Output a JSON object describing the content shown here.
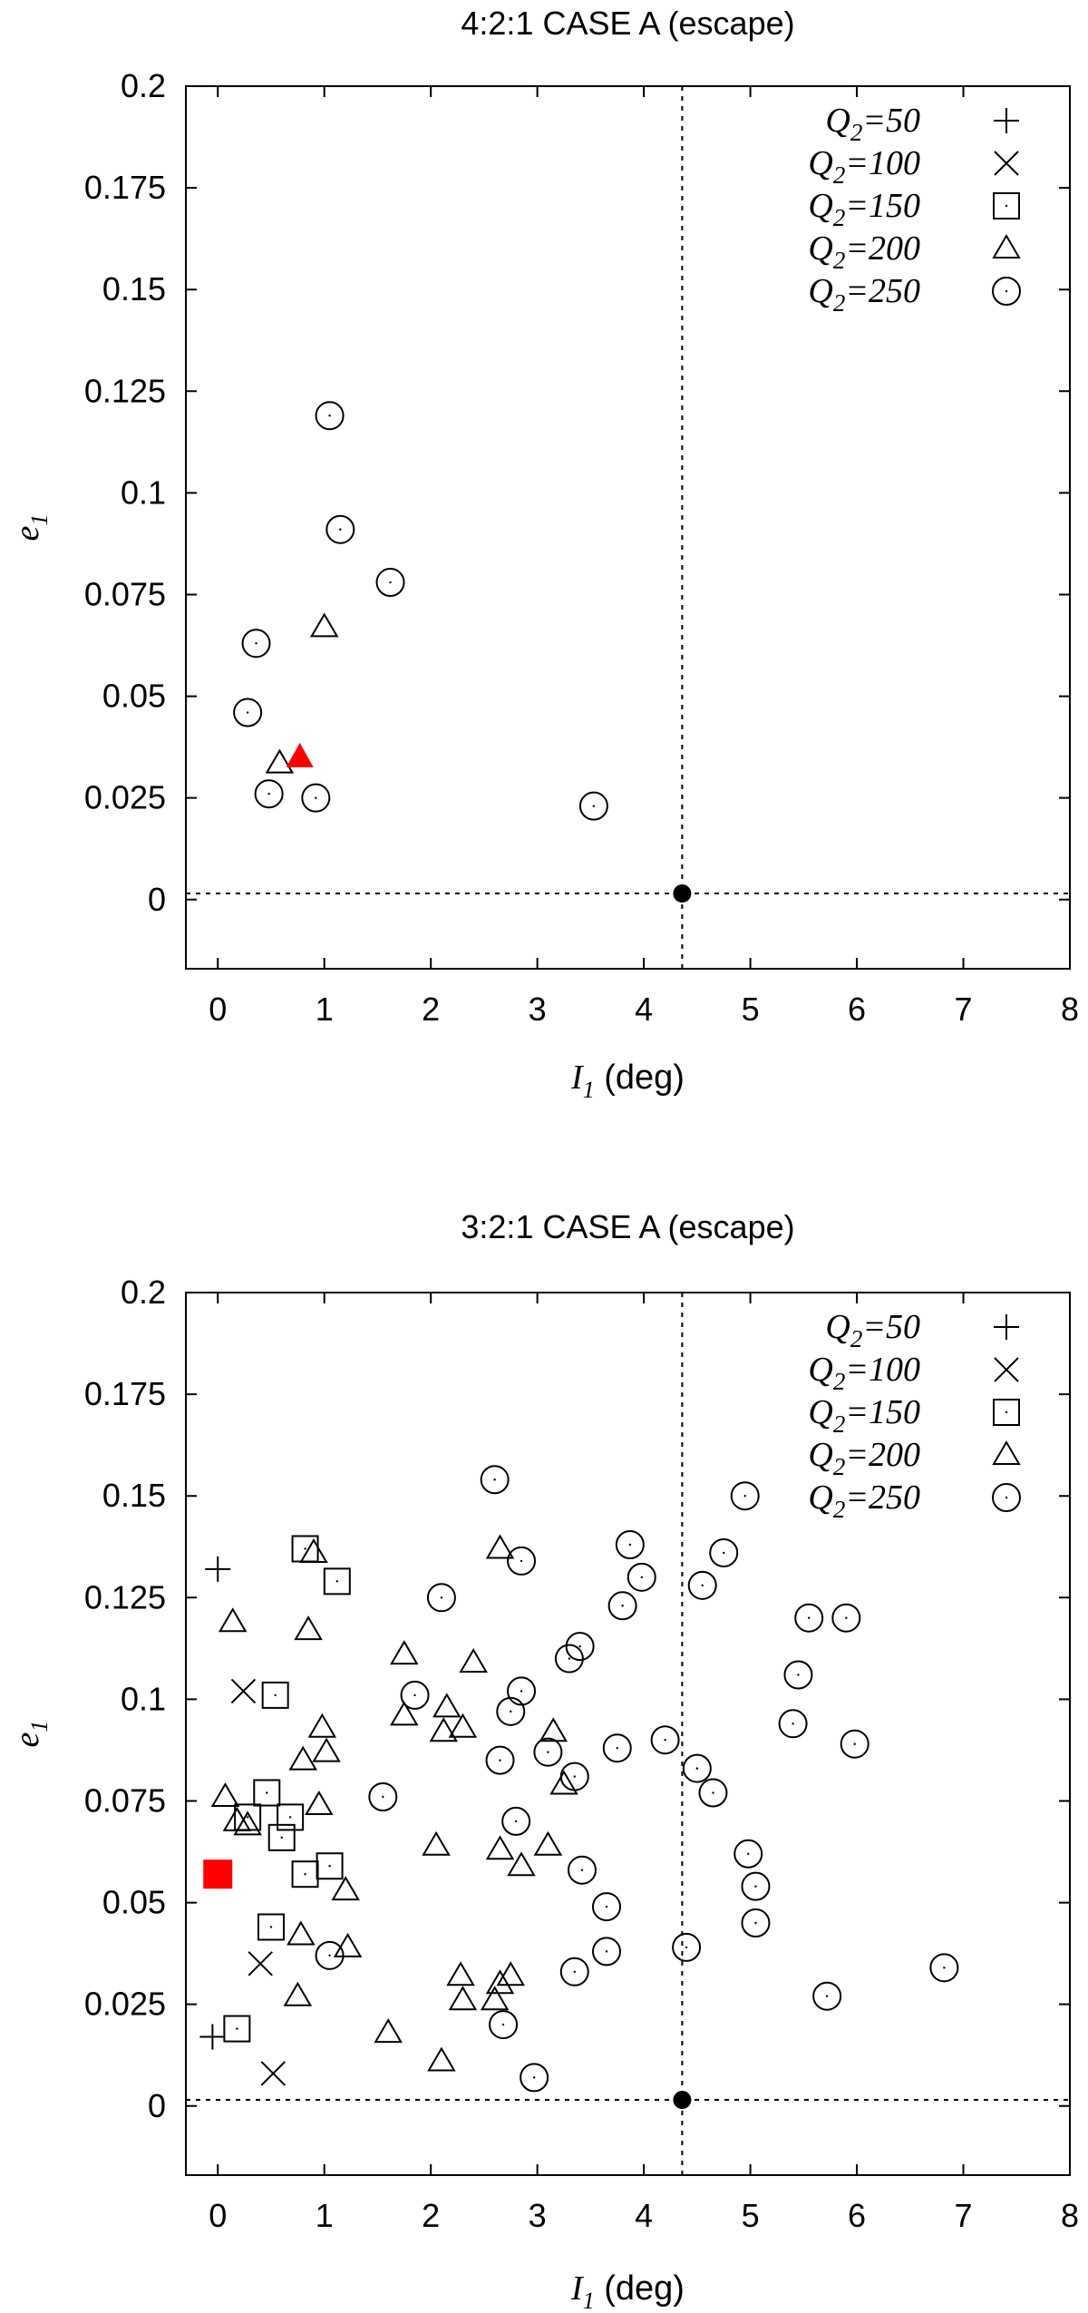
{
  "chart_data": [
    {
      "type": "scatter",
      "title": "4:2:1 CASE A (escape)",
      "xlabel_main": "I",
      "xlabel_sub": "1",
      "xlabel_unit": "(deg)",
      "ylabel_main": "e",
      "ylabel_sub": "1",
      "xlim": [
        -0.3,
        8
      ],
      "ylim": [
        -0.017,
        0.2
      ],
      "xticks": [
        "0",
        "1",
        "2",
        "3",
        "4",
        "5",
        "6",
        "7",
        "8"
      ],
      "yticks": [
        "0",
        "0.025",
        "0.05",
        "0.075",
        "0.1",
        "0.125",
        "0.15",
        "0.175",
        "0.2"
      ],
      "legend_position": "top-right",
      "reference_lines": {
        "x": 4.36,
        "y": 0.0015
      },
      "reference_point": {
        "x": 4.36,
        "y": 0.0015
      },
      "series": [
        {
          "label_main": "Q",
          "label_sub": "2",
          "label_rest": "=50",
          "marker": "plus",
          "points": []
        },
        {
          "label_main": "Q",
          "label_sub": "2",
          "label_rest": "=100",
          "marker": "cross",
          "points": []
        },
        {
          "label_main": "Q",
          "label_sub": "2",
          "label_rest": "=150",
          "marker": "square",
          "points": []
        },
        {
          "label_main": "Q",
          "label_sub": "2",
          "label_rest": "=200",
          "marker": "triangle",
          "points": [
            [
              1.0,
              0.067
            ],
            [
              0.58,
              0.0335
            ]
          ]
        },
        {
          "label_main": "Q",
          "label_sub": "2",
          "label_rest": "=250",
          "marker": "circle",
          "points": [
            [
              1.05,
              0.119
            ],
            [
              1.15,
              0.091
            ],
            [
              1.62,
              0.078
            ],
            [
              0.36,
              0.063
            ],
            [
              0.28,
              0.046
            ],
            [
              0.48,
              0.026
            ],
            [
              0.92,
              0.025
            ],
            [
              3.53,
              0.023
            ]
          ]
        }
      ],
      "highlight": {
        "marker": "filled-triangle",
        "color": "#ff0000",
        "x": 0.77,
        "y": 0.035
      }
    },
    {
      "type": "scatter",
      "title": "3:2:1 CASE A (escape)",
      "xlabel_main": "I",
      "xlabel_sub": "1",
      "xlabel_unit": "(deg)",
      "ylabel_main": "e",
      "ylabel_sub": "1",
      "xlim": [
        -0.3,
        8
      ],
      "ylim": [
        -0.017,
        0.2
      ],
      "xticks": [
        "0",
        "1",
        "2",
        "3",
        "4",
        "5",
        "6",
        "7",
        "8"
      ],
      "yticks": [
        "0",
        "0.025",
        "0.05",
        "0.075",
        "0.1",
        "0.125",
        "0.15",
        "0.175",
        "0.2"
      ],
      "legend_position": "top-right",
      "reference_lines": {
        "x": 4.36,
        "y": 0.0015
      },
      "reference_point": {
        "x": 4.36,
        "y": 0.0015
      },
      "series": [
        {
          "label_main": "Q",
          "label_sub": "2",
          "label_rest": "=50",
          "marker": "plus",
          "points": [
            [
              0.0,
              0.132
            ],
            [
              -0.05,
              0.017
            ]
          ]
        },
        {
          "label_main": "Q",
          "label_sub": "2",
          "label_rest": "=100",
          "marker": "cross",
          "points": [
            [
              0.24,
              0.102
            ],
            [
              0.4,
              0.035
            ],
            [
              0.52,
              0.008
            ]
          ]
        },
        {
          "label_main": "Q",
          "label_sub": "2",
          "label_rest": "=150",
          "marker": "square",
          "points": [
            [
              0.82,
              0.137
            ],
            [
              1.12,
              0.129
            ],
            [
              0.54,
              0.101
            ],
            [
              0.46,
              0.077
            ],
            [
              0.28,
              0.071
            ],
            [
              0.68,
              0.071
            ],
            [
              0.6,
              0.066
            ],
            [
              1.05,
              0.059
            ],
            [
              0.82,
              0.057
            ],
            [
              0.5,
              0.044
            ],
            [
              0.18,
              0.019
            ]
          ]
        },
        {
          "label_main": "Q",
          "label_sub": "2",
          "label_rest": "=200",
          "marker": "triangle",
          "points": [
            [
              0.9,
              0.136
            ],
            [
              2.65,
              0.137
            ],
            [
              0.14,
              0.119
            ],
            [
              0.85,
              0.117
            ],
            [
              1.75,
              0.111
            ],
            [
              2.4,
              0.109
            ],
            [
              0.98,
              0.093
            ],
            [
              1.02,
              0.087
            ],
            [
              2.15,
              0.098
            ],
            [
              2.3,
              0.093
            ],
            [
              2.12,
              0.092
            ],
            [
              3.15,
              0.092
            ],
            [
              1.75,
              0.096
            ],
            [
              0.8,
              0.085
            ],
            [
              3.25,
              0.079
            ],
            [
              0.07,
              0.076
            ],
            [
              0.95,
              0.074
            ],
            [
              0.28,
              0.069
            ],
            [
              0.18,
              0.07
            ],
            [
              2.05,
              0.064
            ],
            [
              2.65,
              0.063
            ],
            [
              3.1,
              0.064
            ],
            [
              2.85,
              0.059
            ],
            [
              1.2,
              0.053
            ],
            [
              0.78,
              0.042
            ],
            [
              1.22,
              0.039
            ],
            [
              2.28,
              0.032
            ],
            [
              2.75,
              0.032
            ],
            [
              2.65,
              0.03
            ],
            [
              0.75,
              0.027
            ],
            [
              2.3,
              0.026
            ],
            [
              2.6,
              0.026
            ],
            [
              1.6,
              0.018
            ],
            [
              2.1,
              0.011
            ]
          ]
        },
        {
          "label_main": "Q",
          "label_sub": "2",
          "label_rest": "=250",
          "marker": "circle",
          "points": [
            [
              2.6,
              0.154
            ],
            [
              4.95,
              0.15
            ],
            [
              3.87,
              0.138
            ],
            [
              2.85,
              0.134
            ],
            [
              4.75,
              0.136
            ],
            [
              3.98,
              0.13
            ],
            [
              4.55,
              0.128
            ],
            [
              2.1,
              0.125
            ],
            [
              3.8,
              0.123
            ],
            [
              5.55,
              0.12
            ],
            [
              5.9,
              0.12
            ],
            [
              3.4,
              0.113
            ],
            [
              3.3,
              0.11
            ],
            [
              5.45,
              0.106
            ],
            [
              1.85,
              0.101
            ],
            [
              2.85,
              0.102
            ],
            [
              2.75,
              0.097
            ],
            [
              5.4,
              0.094
            ],
            [
              4.2,
              0.09
            ],
            [
              5.98,
              0.089
            ],
            [
              3.75,
              0.088
            ],
            [
              3.1,
              0.087
            ],
            [
              2.65,
              0.085
            ],
            [
              4.5,
              0.083
            ],
            [
              3.35,
              0.081
            ],
            [
              4.65,
              0.077
            ],
            [
              1.55,
              0.076
            ],
            [
              2.8,
              0.07
            ],
            [
              4.98,
              0.062
            ],
            [
              3.42,
              0.058
            ],
            [
              5.05,
              0.054
            ],
            [
              3.65,
              0.049
            ],
            [
              5.05,
              0.045
            ],
            [
              3.65,
              0.038
            ],
            [
              4.4,
              0.039
            ],
            [
              1.05,
              0.037
            ],
            [
              3.35,
              0.033
            ],
            [
              6.82,
              0.034
            ],
            [
              5.72,
              0.027
            ],
            [
              2.68,
              0.02
            ],
            [
              2.97,
              0.007
            ]
          ]
        }
      ],
      "highlight": {
        "marker": "filled-square",
        "color": "#ff0000",
        "x": 0.0,
        "y": 0.057
      }
    }
  ]
}
